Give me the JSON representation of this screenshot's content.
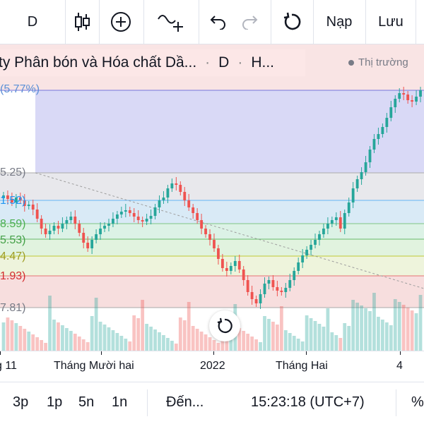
{
  "toolbar": {
    "interval": "D",
    "load_label": "Nạp",
    "save_label": "Lưu",
    "icons": [
      "candles-icon",
      "add-indicator-icon",
      "compare-icon",
      "undo-icon",
      "redo-icon",
      "reset-icon"
    ]
  },
  "legend": {
    "symbol_name": "ty Phân bón và Hóa chất Dầ...",
    "interval": "D",
    "exchange": "H...",
    "market_status": "Thị trường"
  },
  "fib_labels": [
    {
      "text": "(5.77%)",
      "color": "#5b8fd6"
    },
    {
      "text": "5.25)",
      "color": "#787b86"
    },
    {
      "text": "1.52)",
      "color": "#2196f3"
    },
    {
      "text": "8.59)",
      "color": "#4caf50"
    },
    {
      "text": "5.53)",
      "color": "#43a047"
    },
    {
      "text": "4.47)",
      "color": "#9e9d24"
    },
    {
      "text": "1.93)",
      "color": "#d32f2f"
    },
    {
      "text": "7.81)",
      "color": "#787b86"
    }
  ],
  "time_axis": {
    "labels": [
      "g 11",
      "Tháng Mười hai",
      "2022",
      "Tháng Hai",
      "4"
    ]
  },
  "bottombar": {
    "ranges": [
      "3p",
      "1p",
      "5n",
      "1n"
    ],
    "goto": "Đến...",
    "clock": "15:23:18 (UTC+7)",
    "percent": "%"
  },
  "colors": {
    "up": "#26a69a",
    "down": "#ef5350",
    "fib_top": "#d8d8f5",
    "fib_grey": "#e6e6e6"
  }
}
